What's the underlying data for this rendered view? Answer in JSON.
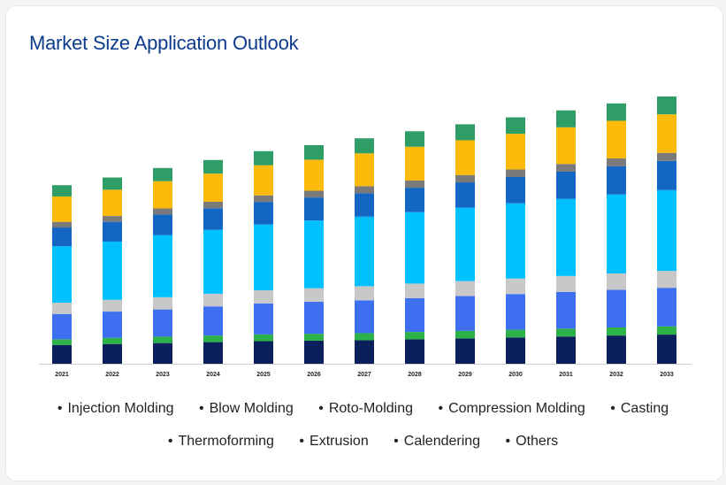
{
  "title": "Market Size Application Outlook",
  "colors": [
    "#0b1f5c",
    "#2db24a",
    "#3d6ff0",
    "#c8c8c8",
    "#00c1ff",
    "#1466c4",
    "#7a7a7a",
    "#fcbb0a",
    "#2f9d66"
  ],
  "chart_data": {
    "type": "bar",
    "stacked": true,
    "categories": [
      "2021",
      "2022",
      "2023",
      "2024",
      "2025",
      "2026",
      "2027",
      "2028",
      "2029",
      "2030",
      "2031",
      "2032",
      "2033"
    ],
    "series": [
      {
        "name": "Injection Molding",
        "color": "#0b1f5c",
        "values": [
          20,
          21,
          22,
          23,
          24,
          24.5,
          25,
          26,
          27,
          28,
          29,
          30,
          31
        ]
      },
      {
        "name": "Blow Molding",
        "color": "#2db24a",
        "values": [
          6,
          6.5,
          6.8,
          7,
          7.2,
          7.4,
          7.5,
          7.8,
          8,
          8.2,
          8.4,
          8.6,
          8.8
        ]
      },
      {
        "name": "Roto-Molding",
        "color": "#3d6ff0",
        "values": [
          27,
          28,
          29,
          31,
          33,
          34,
          35,
          36,
          37,
          38,
          39,
          40,
          41
        ]
      },
      {
        "name": "Compression Molding",
        "color": "#c8c8c8",
        "values": [
          12,
          12.5,
          13,
          13.5,
          14,
          14.5,
          15,
          15.5,
          16,
          16.5,
          17,
          17.5,
          18
        ]
      },
      {
        "name": "Casting",
        "color": "#00c1ff",
        "values": [
          60,
          62,
          66,
          68,
          70,
          72,
          74,
          76,
          78,
          80,
          82,
          84,
          86
        ]
      },
      {
        "name": "Thermoforming",
        "color": "#1466c4",
        "values": [
          20,
          21,
          22,
          23,
          24,
          24.5,
          25,
          26,
          27,
          28,
          29,
          30,
          31
        ]
      },
      {
        "name": "Extrusion",
        "color": "#7a7a7a",
        "values": [
          6,
          6.2,
          6.5,
          6.8,
          7,
          7.2,
          7.4,
          7.6,
          7.8,
          8,
          8.2,
          8.4,
          8.6
        ]
      },
      {
        "name": "Calendering",
        "color": "#fcbb0a",
        "values": [
          27,
          28,
          29,
          30,
          32,
          33,
          35,
          36,
          37,
          38,
          39,
          40,
          41
        ]
      },
      {
        "name": "Others",
        "color": "#2f9d66",
        "values": [
          12,
          13,
          14,
          14.5,
          15,
          15.5,
          16,
          16.5,
          17,
          17.5,
          18,
          18.5,
          19
        ]
      }
    ]
  },
  "legend": {
    "row1": [
      "Injection Molding",
      "Blow Molding",
      "Roto-Molding",
      "Compression Molding",
      "Casting"
    ],
    "row2": [
      "Thermoforming",
      "Extrusion",
      "Calendering",
      "Others"
    ],
    "bullet": "•"
  }
}
